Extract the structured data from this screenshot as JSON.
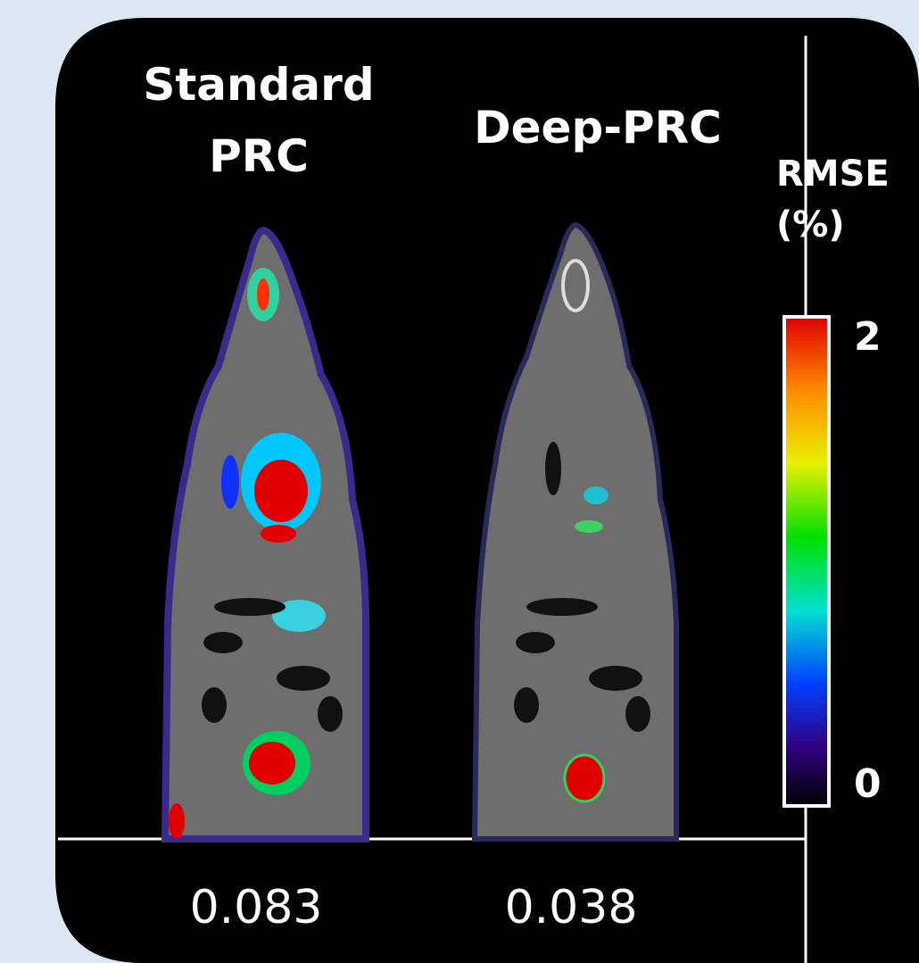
{
  "panels": [
    {
      "title": [
        "Standard",
        "PRC"
      ],
      "rmse": "0.083"
    },
    {
      "title": [
        "Deep-PRC"
      ],
      "rmse": "0.038"
    }
  ],
  "colorbar": {
    "label": [
      "RMSE",
      "(%)"
    ],
    "max": "2",
    "min": "0"
  }
}
